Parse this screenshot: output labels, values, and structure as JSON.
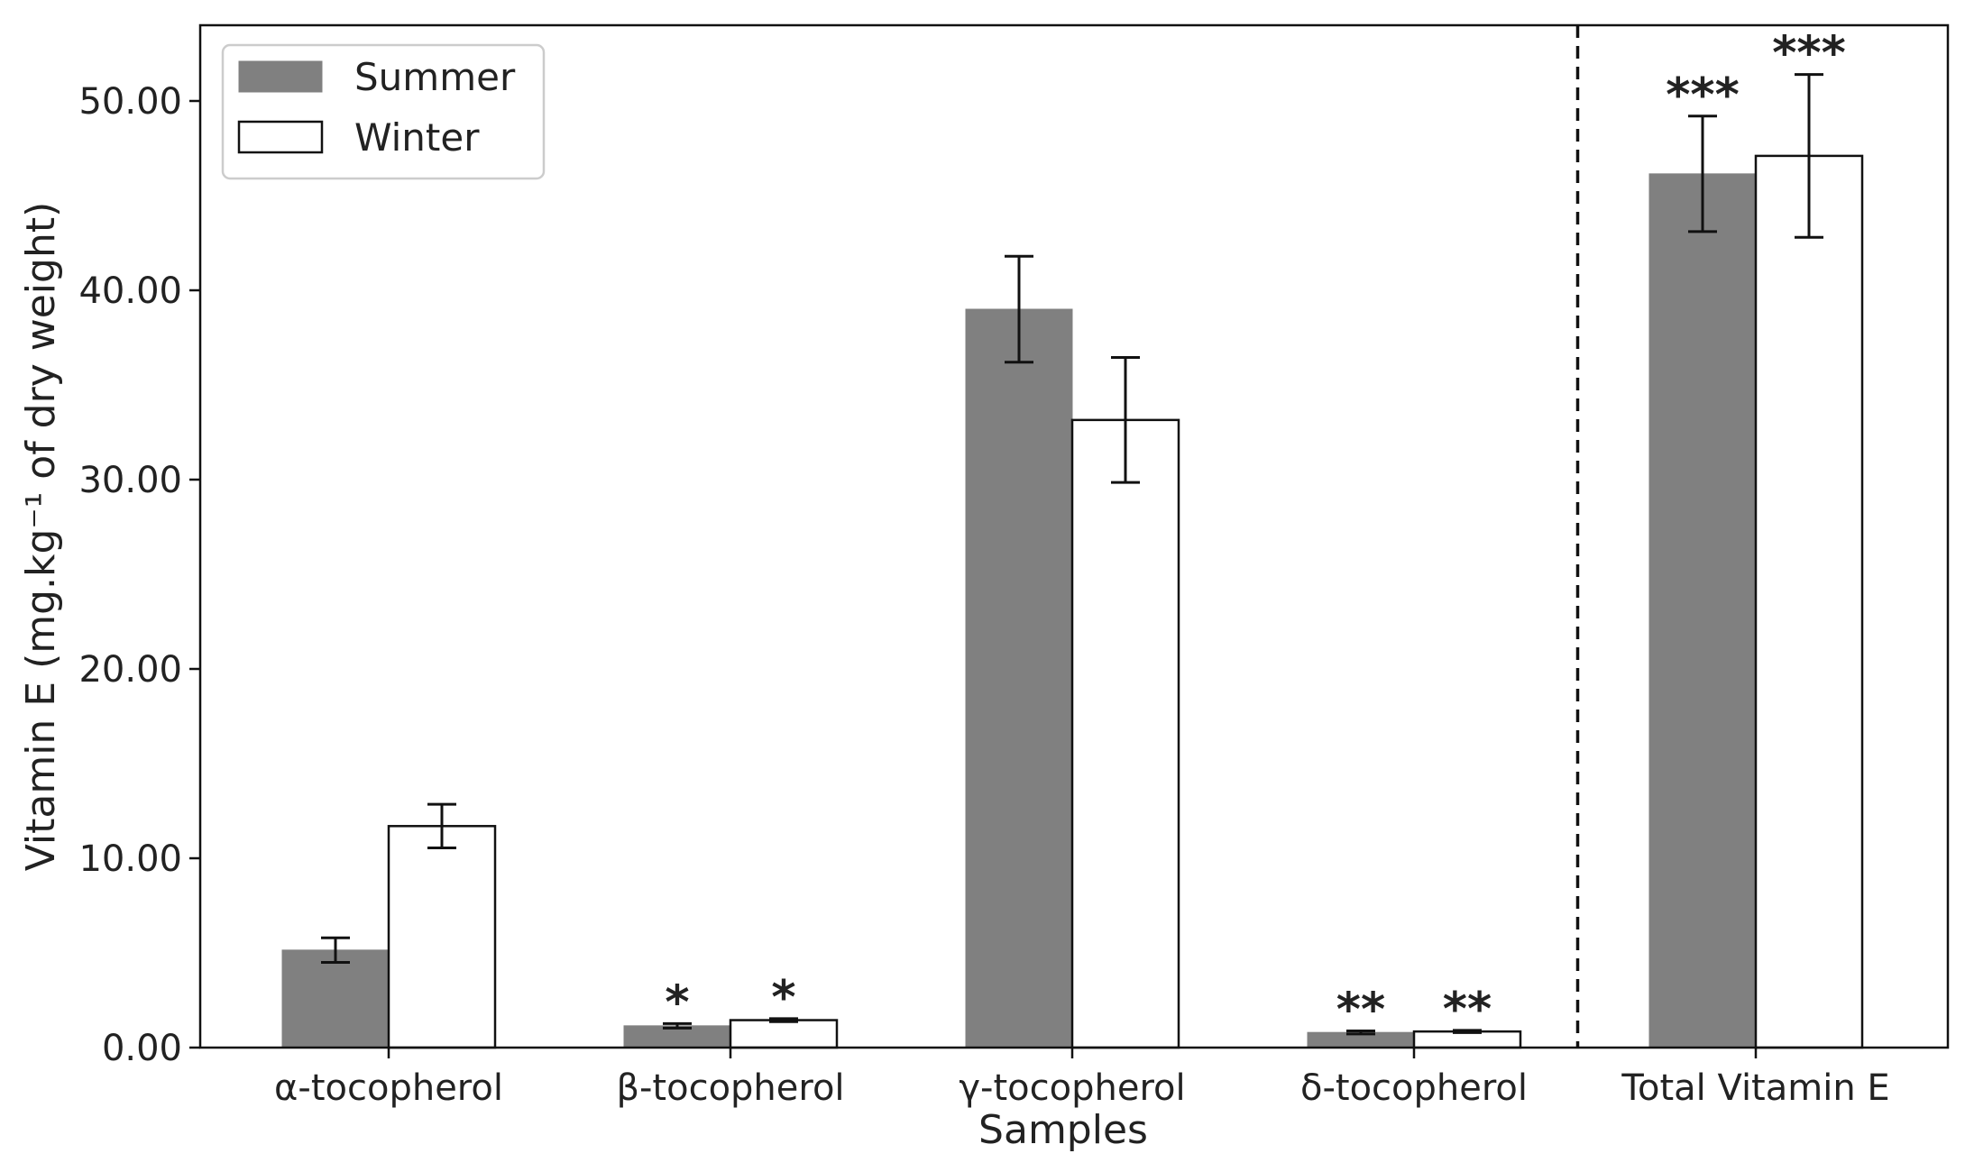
{
  "chart_data": {
    "type": "bar",
    "categories": [
      "α-tocopherol",
      "β-tocopherol",
      "γ-tocopherol",
      "δ-tocopherol",
      "Total Vitamin E"
    ],
    "series": [
      {
        "name": "Summer",
        "color": "#808080",
        "values": [
          5.15,
          1.15,
          39.0,
          0.8,
          46.15
        ],
        "errors": [
          0.65,
          0.12,
          2.8,
          0.08,
          3.05
        ],
        "significance": [
          "",
          "*",
          "",
          "**",
          "***"
        ]
      },
      {
        "name": "Winter",
        "color": "#ffffff",
        "values": [
          11.7,
          1.45,
          33.15,
          0.85,
          47.1
        ],
        "errors": [
          1.15,
          0.08,
          3.3,
          0.06,
          4.3
        ],
        "significance": [
          "",
          "*",
          "",
          "**",
          "***"
        ]
      }
    ],
    "xlabel": "Samples",
    "ylabel": "Vitamin E (mg.kg⁻¹ of dry weight)",
    "ylim": [
      0,
      54
    ],
    "yticks": [
      0,
      10,
      20,
      30,
      40,
      50
    ],
    "ytick_labels": [
      "0.00",
      "10.00",
      "20.00",
      "30.00",
      "40.00",
      "50.00"
    ],
    "grid": false,
    "legend": "top-left",
    "separator_before_category": 4
  }
}
